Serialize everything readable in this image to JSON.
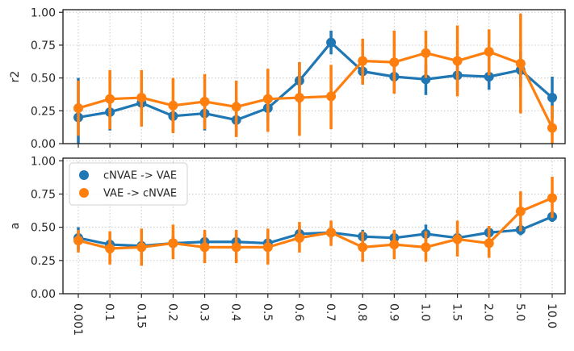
{
  "chart_data": [
    {
      "type": "line",
      "ylabel": "r2",
      "ylim": [
        0,
        1.02
      ],
      "yticks": [
        "0.00",
        "0.25",
        "0.50",
        "0.75",
        "1.00"
      ],
      "grid": true,
      "categories": [
        "0.001",
        "0.1",
        "0.15",
        "0.2",
        "0.3",
        "0.4",
        "0.5",
        "0.6",
        "0.7",
        "0.8",
        "0.9",
        "1.0",
        "1.5",
        "2.0",
        "5.0",
        "10.0"
      ],
      "series": [
        {
          "name": "cNVAE -> VAE",
          "color": "#1f77b4",
          "values": [
            0.2,
            0.24,
            0.31,
            0.21,
            0.23,
            0.18,
            0.27,
            0.48,
            0.77,
            0.55,
            0.51,
            0.49,
            0.52,
            0.51,
            0.56,
            0.35
          ],
          "ci_low": [
            0.0,
            0.1,
            0.18,
            0.09,
            0.1,
            0.06,
            0.17,
            0.31,
            0.68,
            0.45,
            0.39,
            0.37,
            0.41,
            0.41,
            0.43,
            0.19
          ],
          "ci_high": [
            0.5,
            0.37,
            0.46,
            0.33,
            0.36,
            0.3,
            0.38,
            0.62,
            0.86,
            0.64,
            0.6,
            0.6,
            0.63,
            0.62,
            0.7,
            0.51
          ]
        },
        {
          "name": "VAE -> cNVAE",
          "color": "#ff7f0e",
          "values": [
            0.27,
            0.34,
            0.35,
            0.29,
            0.32,
            0.28,
            0.34,
            0.35,
            0.36,
            0.63,
            0.62,
            0.69,
            0.63,
            0.7,
            0.61,
            0.12
          ],
          "ci_low": [
            0.06,
            0.11,
            0.13,
            0.08,
            0.11,
            0.05,
            0.09,
            0.06,
            0.11,
            0.45,
            0.38,
            0.5,
            0.36,
            0.52,
            0.23,
            0.0
          ],
          "ci_high": [
            0.48,
            0.56,
            0.56,
            0.5,
            0.53,
            0.48,
            0.57,
            0.62,
            0.6,
            0.8,
            0.86,
            0.86,
            0.9,
            0.87,
            0.99,
            0.29
          ]
        }
      ]
    },
    {
      "type": "line",
      "ylabel": "a",
      "ylim": [
        0,
        1.02
      ],
      "yticks": [
        "0.00",
        "0.25",
        "0.50",
        "0.75",
        "1.00"
      ],
      "grid": true,
      "legend_position": "top-left",
      "categories": [
        "0.001",
        "0.1",
        "0.15",
        "0.2",
        "0.3",
        "0.4",
        "0.5",
        "0.6",
        "0.7",
        "0.8",
        "0.9",
        "1.0",
        "1.5",
        "2.0",
        "5.0",
        "10.0"
      ],
      "series": [
        {
          "name": "cNVAE -> VAE",
          "color": "#1f77b4",
          "values": [
            0.42,
            0.37,
            0.36,
            0.38,
            0.39,
            0.39,
            0.38,
            0.45,
            0.46,
            0.43,
            0.42,
            0.45,
            0.42,
            0.46,
            0.48,
            0.58
          ],
          "ci_low": [
            0.33,
            0.32,
            0.31,
            0.33,
            0.33,
            0.33,
            0.32,
            0.39,
            0.41,
            0.38,
            0.37,
            0.39,
            0.37,
            0.42,
            0.44,
            0.54
          ],
          "ci_high": [
            0.5,
            0.41,
            0.41,
            0.43,
            0.45,
            0.45,
            0.44,
            0.51,
            0.51,
            0.48,
            0.47,
            0.52,
            0.47,
            0.5,
            0.53,
            0.62
          ]
        },
        {
          "name": "VAE -> cNVAE",
          "color": "#ff7f0e",
          "values": [
            0.4,
            0.34,
            0.35,
            0.38,
            0.35,
            0.35,
            0.35,
            0.42,
            0.46,
            0.35,
            0.37,
            0.35,
            0.41,
            0.38,
            0.62,
            0.72
          ],
          "ci_low": [
            0.31,
            0.22,
            0.21,
            0.26,
            0.23,
            0.23,
            0.22,
            0.31,
            0.36,
            0.24,
            0.26,
            0.24,
            0.28,
            0.27,
            0.47,
            0.57
          ],
          "ci_high": [
            0.48,
            0.47,
            0.49,
            0.52,
            0.48,
            0.48,
            0.49,
            0.54,
            0.55,
            0.47,
            0.48,
            0.47,
            0.55,
            0.51,
            0.77,
            0.88
          ]
        }
      ]
    }
  ]
}
